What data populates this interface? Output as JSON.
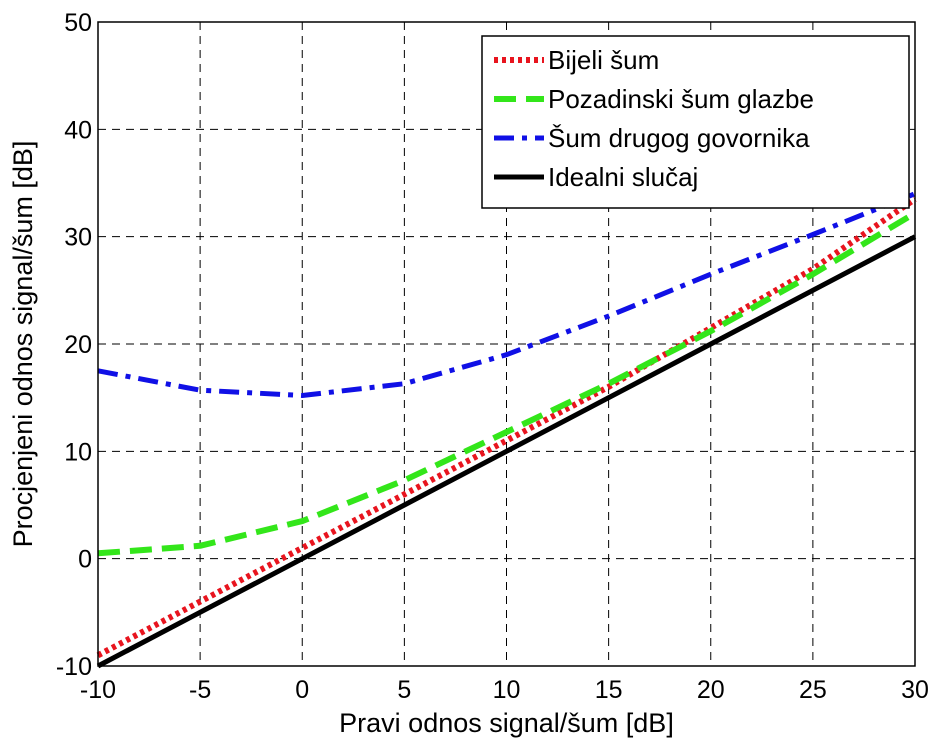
{
  "chart_data": {
    "type": "line",
    "title": "",
    "xlabel": "Pravi odnos signal/šum [dB]",
    "ylabel": "Procjenjeni odnos signal/šum [dB]",
    "xlim": [
      -10,
      30
    ],
    "ylim": [
      -10,
      50
    ],
    "xticks": [
      -10,
      -5,
      0,
      5,
      10,
      15,
      20,
      25,
      30
    ],
    "yticks": [
      -10,
      0,
      10,
      20,
      30,
      40,
      50
    ],
    "grid": true,
    "legend_position": "top-right",
    "x": [
      -10,
      -5,
      0,
      5,
      10,
      15,
      20,
      25,
      30
    ],
    "series": [
      {
        "name": "Bijeli šum",
        "values": [
          -9,
          -4,
          1,
          6,
          11,
          16,
          21.5,
          27,
          33.5
        ],
        "color": "#e8141e",
        "style": "dotted"
      },
      {
        "name": "Pozadinski šum glazbe",
        "values": [
          0.5,
          1.2,
          3.5,
          7.3,
          11.8,
          16.3,
          21.2,
          26.5,
          32.2
        ],
        "color": "#33e61a",
        "style": "dashed"
      },
      {
        "name": "Šum drugog govornika",
        "values": [
          17.5,
          15.7,
          15.2,
          16.3,
          19,
          22.6,
          26.5,
          30.2,
          34
        ],
        "color": "#1010e6",
        "style": "dash-dot"
      },
      {
        "name": "Idealni slučaj",
        "values": [
          -10,
          -5,
          0,
          5,
          10,
          15,
          20,
          25,
          30
        ],
        "color": "#000000",
        "style": "solid"
      }
    ]
  }
}
